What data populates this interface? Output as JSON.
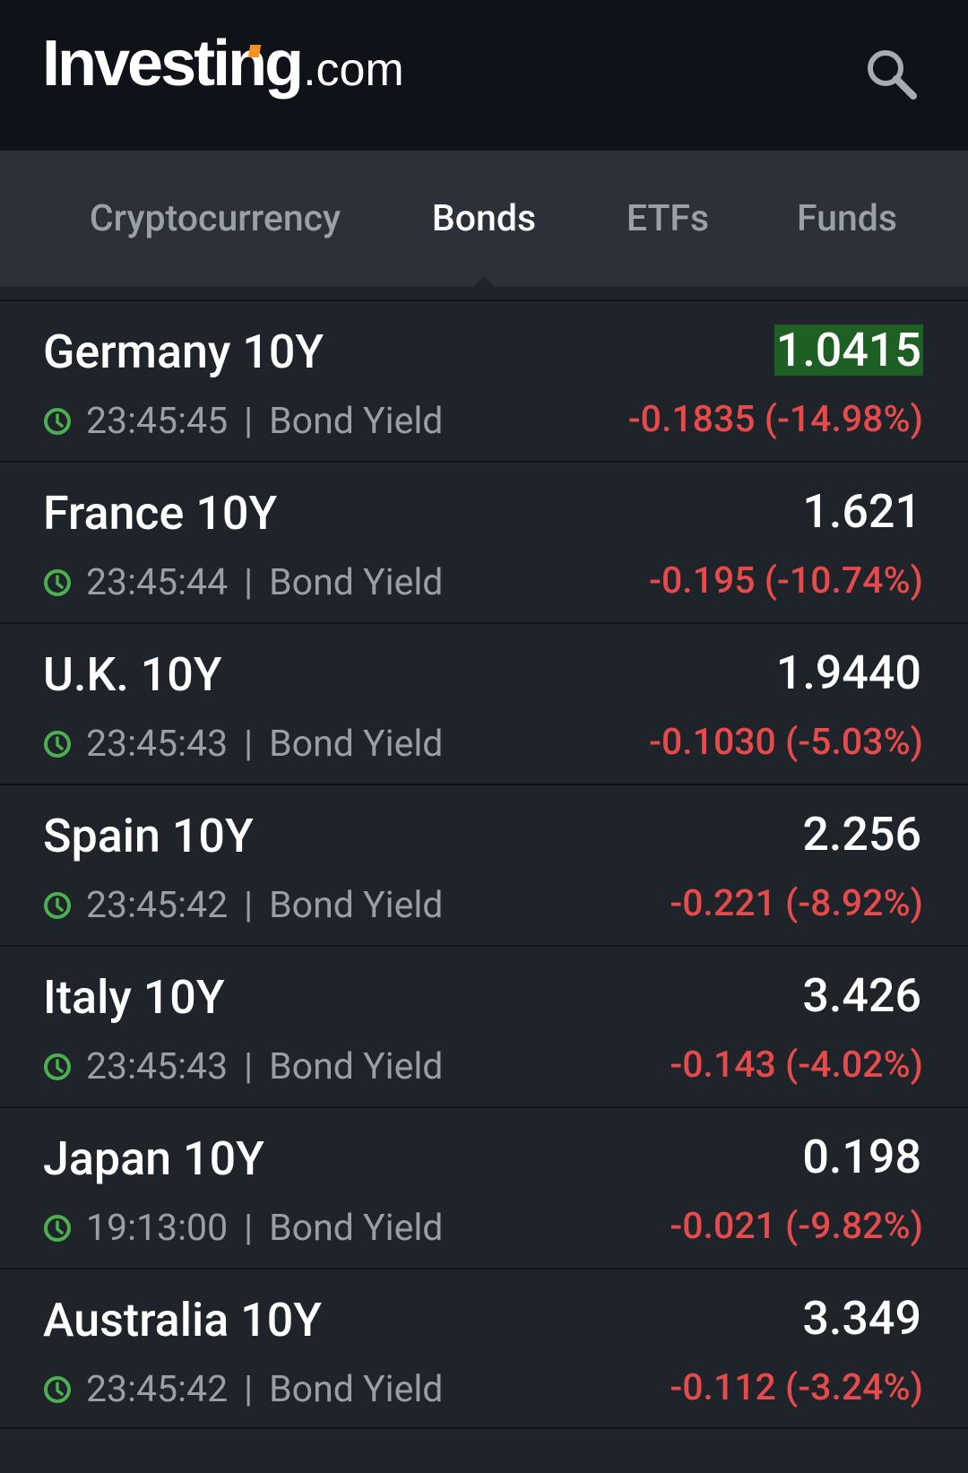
{
  "header": {
    "logo_main": "Investing",
    "logo_suffix": ".com",
    "search_icon": "search-icon"
  },
  "tabs": [
    {
      "label": "Cryptocurrency",
      "active": false
    },
    {
      "label": "Bonds",
      "active": true
    },
    {
      "label": "ETFs",
      "active": false
    },
    {
      "label": "Funds",
      "active": false
    }
  ],
  "colors": {
    "positive_highlight": "#1e5f23",
    "negative": "#e64a4a",
    "clock_green": "#4caf50"
  },
  "bonds": [
    {
      "name": "Germany 10Y",
      "time": "23:45:45",
      "type": "Bond Yield",
      "price": "1.0415",
      "change": "-0.1835 (-14.98%)",
      "highlight": true
    },
    {
      "name": "France 10Y",
      "time": "23:45:44",
      "type": "Bond Yield",
      "price": "1.621",
      "change": "-0.195 (-10.74%)",
      "highlight": false
    },
    {
      "name": "U.K. 10Y",
      "time": "23:45:43",
      "type": "Bond Yield",
      "price": "1.9440",
      "change": "-0.1030 (-5.03%)",
      "highlight": false
    },
    {
      "name": "Spain 10Y",
      "time": "23:45:42",
      "type": "Bond Yield",
      "price": "2.256",
      "change": "-0.221 (-8.92%)",
      "highlight": false
    },
    {
      "name": "Italy 10Y",
      "time": "23:45:43",
      "type": "Bond Yield",
      "price": "3.426",
      "change": "-0.143 (-4.02%)",
      "highlight": false
    },
    {
      "name": "Japan 10Y",
      "time": "19:13:00",
      "type": "Bond Yield",
      "price": "0.198",
      "change": "-0.021 (-9.82%)",
      "highlight": false
    },
    {
      "name": "Australia 10Y",
      "time": "23:45:42",
      "type": "Bond Yield",
      "price": "3.349",
      "change": "-0.112 (-3.24%)",
      "highlight": false
    }
  ]
}
